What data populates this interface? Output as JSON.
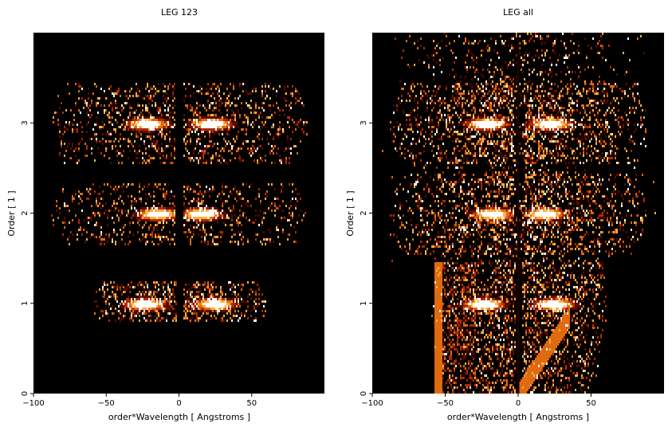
{
  "chart_data": [
    {
      "type": "heatmap",
      "title": "LEG 123",
      "xlabel": "order*Wavelength [ Angstroms ]",
      "ylabel": "Order [ 1 ]",
      "xlim": [
        -100,
        100
      ],
      "ylim": [
        0,
        4
      ],
      "xticks": [
        -100,
        -50,
        0,
        50
      ],
      "yticks": [
        0,
        1,
        2,
        3
      ],
      "colormap": [
        "#000000",
        "#5a0a00",
        "#b02a00",
        "#e06a10",
        "#ffb040",
        "#ffffff"
      ],
      "bands": [
        {
          "order": 1,
          "ylo": 0.82,
          "yhi": 1.25,
          "lines": [
            -24,
            24
          ],
          "extent": 60,
          "gap": 2,
          "density": 0.55
        },
        {
          "order": 2,
          "ylo": 1.65,
          "yhi": 2.35,
          "lines": [
            -15,
            15
          ],
          "extent": 88,
          "gap": 3,
          "density": 0.3
        },
        {
          "order": 3,
          "ylo": 2.55,
          "yhi": 3.45,
          "lines": [
            -22,
            22
          ],
          "extent": 88,
          "gap": 3,
          "density": 0.35
        }
      ],
      "background": "none"
    },
    {
      "type": "heatmap",
      "title": "LEG all",
      "xlabel": "order*Wavelength [ Angstroms ]",
      "ylabel": "Order [ 1 ]",
      "xlim": [
        -100,
        100
      ],
      "ylim": [
        0,
        4
      ],
      "xticks": [
        -100,
        -50,
        0,
        50
      ],
      "yticks": [
        0,
        1,
        2,
        3
      ],
      "colormap": [
        "#000000",
        "#5a0a00",
        "#b02a00",
        "#e06a10",
        "#ffb040",
        "#ffffff"
      ],
      "bands": [
        {
          "order": 1,
          "ylo": 0.0,
          "yhi": 1.48,
          "lines": [
            -24,
            24
          ],
          "extent": 60,
          "gap": 2,
          "density": 0.5
        },
        {
          "order": 2,
          "ylo": 1.55,
          "yhi": 2.45,
          "lines": [
            -18,
            18
          ],
          "extent": 88,
          "gap": 3,
          "density": 0.35
        },
        {
          "order": 3,
          "ylo": 2.55,
          "yhi": 3.45,
          "lines": [
            -22,
            22
          ],
          "extent": 88,
          "gap": 3,
          "density": 0.38
        }
      ],
      "background": "wedge"
    }
  ]
}
